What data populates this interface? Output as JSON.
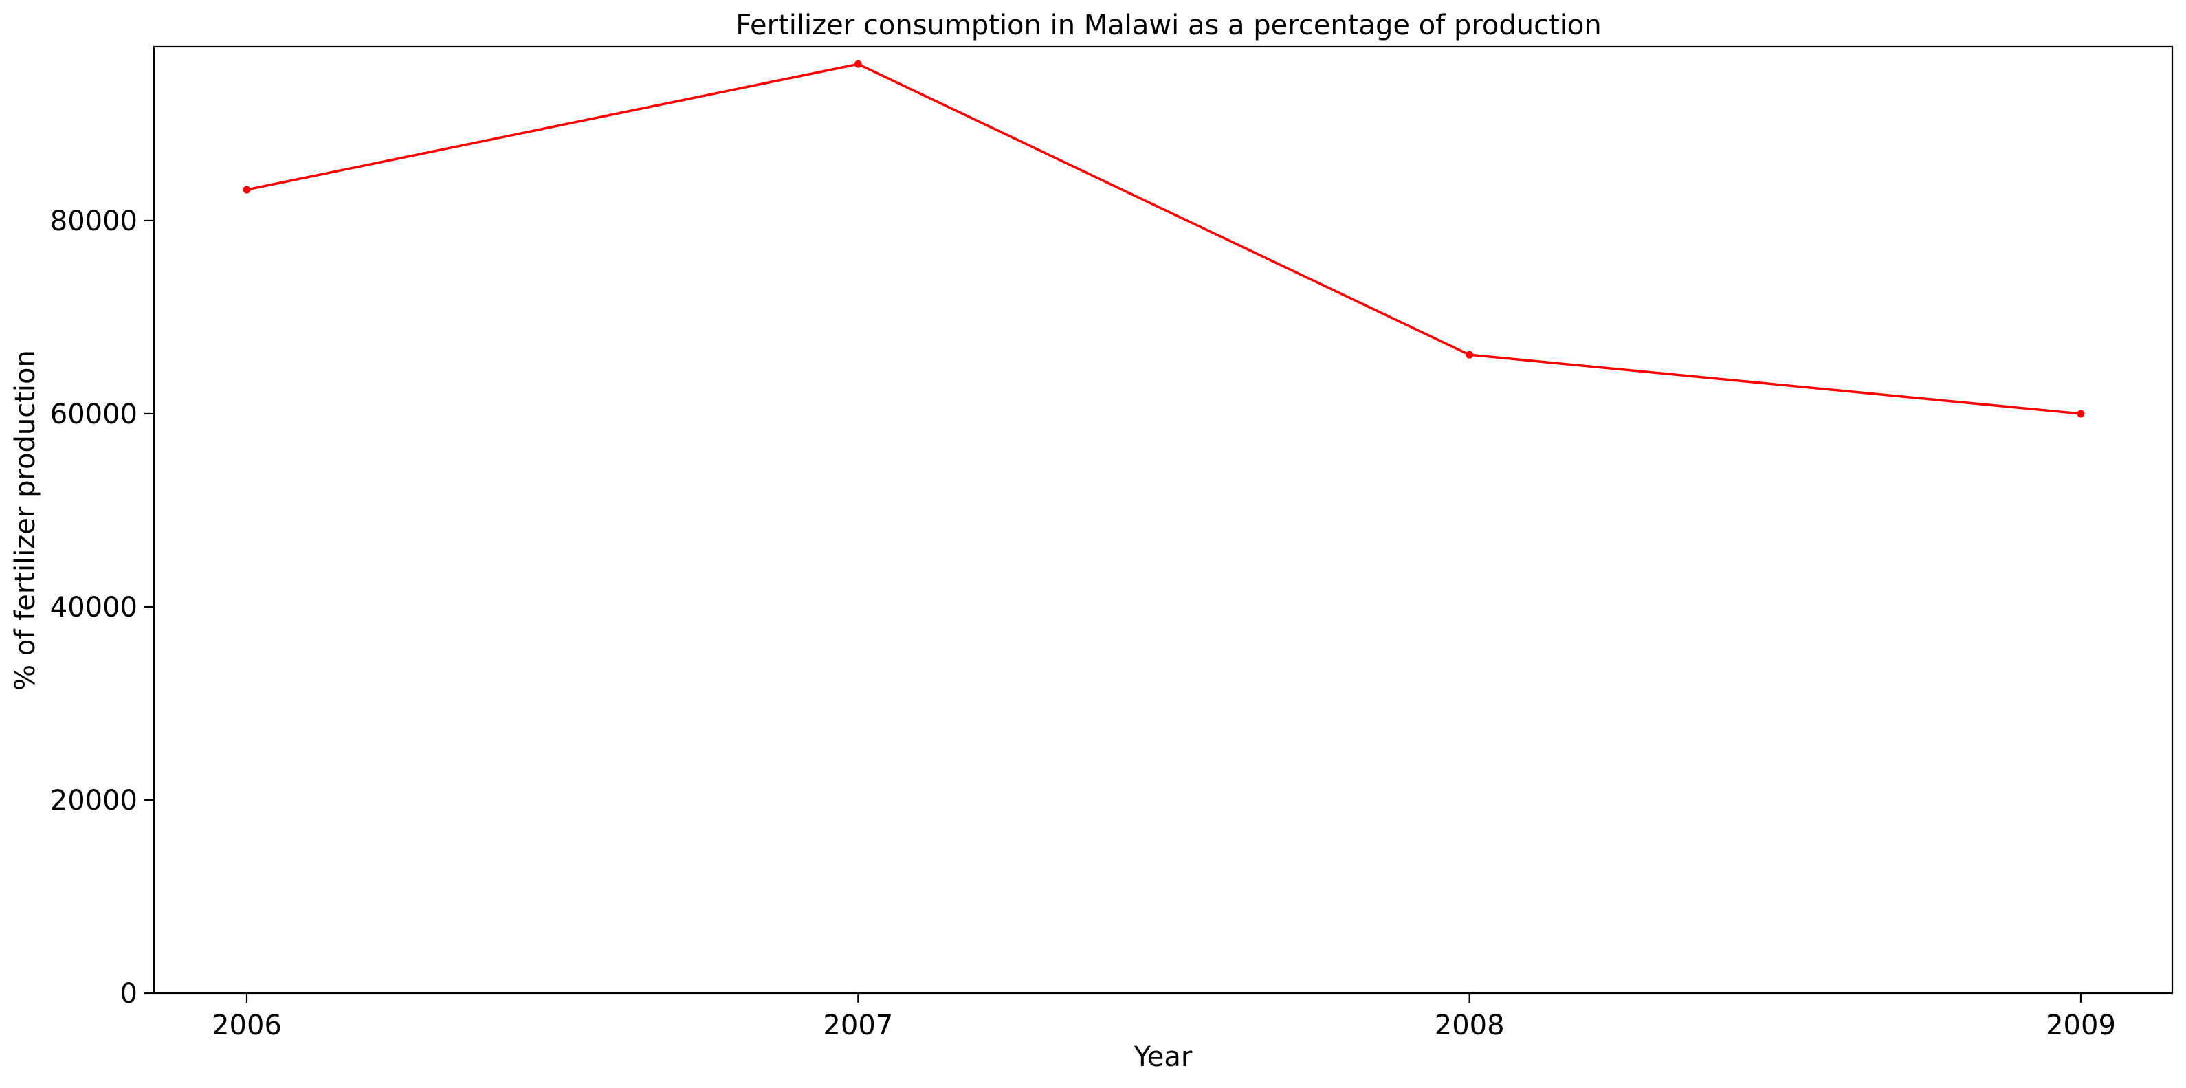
{
  "chart_data": {
    "type": "line",
    "title": "Fertilizer consumption in Malawi as a percentage of production",
    "xlabel": "Year",
    "ylabel": "% of fertilizer production",
    "x": [
      "2006",
      "2007",
      "2008",
      "2009"
    ],
    "series": [
      {
        "name": "",
        "color": "#ff0000",
        "values": [
          83200,
          96200,
          66100,
          60000
        ]
      }
    ],
    "ylim": [
      0,
      98000
    ],
    "yticks": [
      0,
      20000,
      40000,
      60000,
      80000
    ],
    "ytick_labels": [
      "0",
      "20000",
      "40000",
      "60000",
      "80000"
    ],
    "grid": false,
    "legend": "none"
  }
}
